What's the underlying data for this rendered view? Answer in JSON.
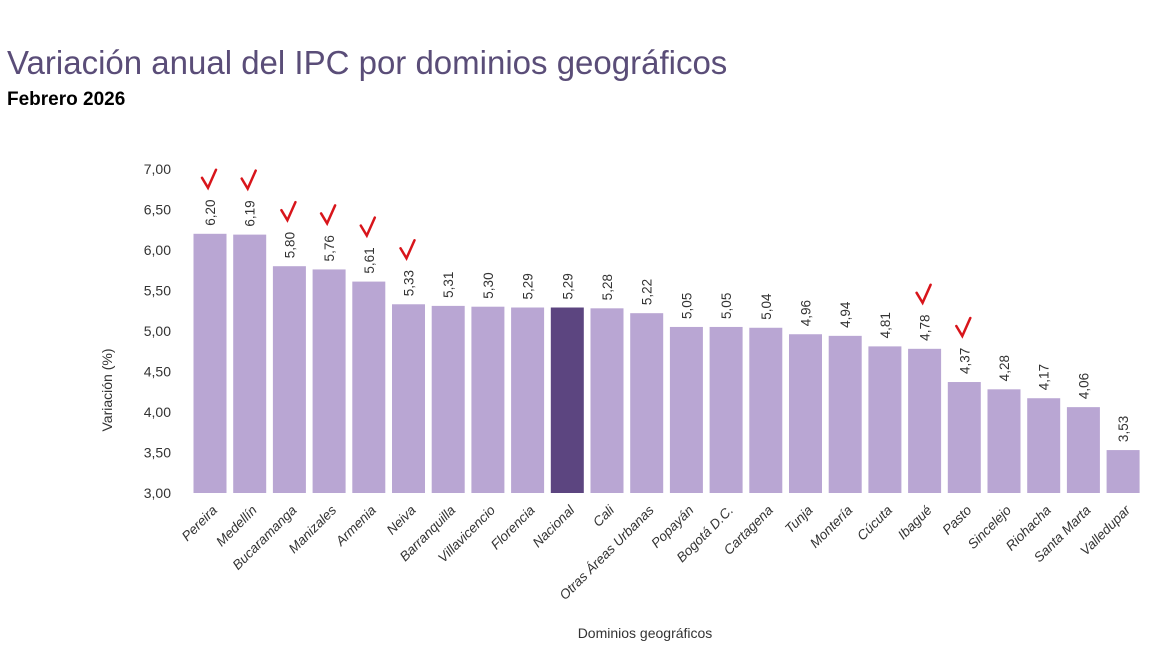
{
  "chart_data": {
    "type": "bar",
    "title": "Variación anual del IPC por dominios geográficos",
    "subtitle": "Febrero 2026",
    "xlabel": "Dominios geográficos",
    "ylabel": "Variación (%)",
    "ylim": [
      3.0,
      7.0
    ],
    "yticks": [
      "3,00",
      "3,50",
      "4,00",
      "4,50",
      "5,00",
      "5,50",
      "6,00",
      "6,50",
      "7,00"
    ],
    "grid": false,
    "categories": [
      "Pereira",
      "Medellín",
      "Bucaramanga",
      "Manizales",
      "Armenia",
      "Neiva",
      "Barranquilla",
      "Villavicencio",
      "Florencia",
      "Nacional",
      "Cali",
      "Otras Áreas Urbanas",
      "Popayán",
      "Bogotá D.C.",
      "Cartagena",
      "Tunja",
      "Montería",
      "Cúcuta",
      "Ibagué",
      "Pasto",
      "Sincelejo",
      "Riohacha",
      "Santa Marta",
      "Valledupar"
    ],
    "values": [
      6.2,
      6.19,
      5.8,
      5.76,
      5.61,
      5.33,
      5.31,
      5.3,
      5.29,
      5.29,
      5.28,
      5.22,
      5.05,
      5.05,
      5.04,
      4.96,
      4.94,
      4.81,
      4.78,
      4.37,
      4.28,
      4.17,
      4.06,
      3.53
    ],
    "value_labels": [
      "6,20",
      "6,19",
      "5,80",
      "5,76",
      "5,61",
      "5,33",
      "5,31",
      "5,30",
      "5,29",
      "5,29",
      "5,28",
      "5,22",
      "5,05",
      "5,05",
      "5,04",
      "4,96",
      "4,94",
      "4,81",
      "4,78",
      "4,37",
      "4,28",
      "4,17",
      "4,06",
      "3,53"
    ],
    "highlight": "Nacional",
    "colors": {
      "bar": "#b9a6d3",
      "highlight": "#5c4580",
      "title": "#5a4d78",
      "annotation": "#d8151b"
    },
    "annotations_checkmarks": [
      "Pereira",
      "Medellín",
      "Bucaramanga",
      "Manizales",
      "Armenia",
      "Neiva",
      "Ibagué",
      "Pasto"
    ]
  }
}
